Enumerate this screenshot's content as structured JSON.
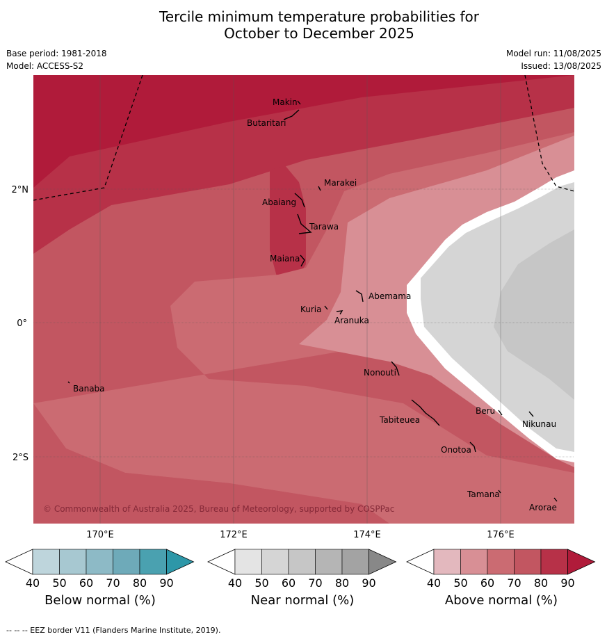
{
  "title": {
    "line1": "Tercile minimum temperature probabilities for",
    "line2": "October to December 2025"
  },
  "meta_left": {
    "base_period": "Base period: 1981-2018",
    "model": "Model: ACCESS-S2"
  },
  "meta_right": {
    "model_run": "Model run: 11/08/2025",
    "issued": "Issued: 13/08/2025"
  },
  "axes": {
    "lon_ticks": [
      "170°E",
      "172°E",
      "174°E",
      "176°E"
    ],
    "lat_ticks": [
      "2°N",
      "0°",
      "2°S"
    ]
  },
  "places": [
    {
      "name": "Makin"
    },
    {
      "name": "Butaritari"
    },
    {
      "name": "Marakei"
    },
    {
      "name": "Abaiang"
    },
    {
      "name": "Tarawa"
    },
    {
      "name": "Maiana"
    },
    {
      "name": "Abemama"
    },
    {
      "name": "Kuria"
    },
    {
      "name": "Aranuka"
    },
    {
      "name": "Banaba"
    },
    {
      "name": "Nonouti"
    },
    {
      "name": "Beru"
    },
    {
      "name": "Nikunau"
    },
    {
      "name": "Tabiteuea"
    },
    {
      "name": "Onotoa"
    },
    {
      "name": "Tamana"
    },
    {
      "name": "Arorae"
    }
  ],
  "copyright": "© Commonwealth of Australia 2025, Bureau of Meteorology, supported by COSPPac",
  "colorbars": [
    {
      "label": "Below normal (%)",
      "ticks": [
        "40",
        "50",
        "60",
        "70",
        "80",
        "90"
      ],
      "colors": [
        "#bed5dc",
        "#a7c8d1",
        "#8dbac6",
        "#6eaab9",
        "#4aa1b0",
        "#2d97a8"
      ]
    },
    {
      "label": "Near normal (%)",
      "ticks": [
        "40",
        "50",
        "60",
        "70",
        "80",
        "90"
      ],
      "colors": [
        "#e4e4e4",
        "#d5d5d5",
        "#c6c6c6",
        "#b5b5b5",
        "#a3a3a3",
        "#888888"
      ]
    },
    {
      "label": "Above normal (%)",
      "ticks": [
        "40",
        "50",
        "60",
        "70",
        "80",
        "90"
      ],
      "colors": [
        "#e3b8be",
        "#d88f95",
        "#cb6b72",
        "#c25661",
        "#b73148",
        "#b01b3a"
      ]
    }
  ],
  "footer": "--  --  -- EEZ border V11 (Flanders Marine Institute, 2019).",
  "colors": {
    "above_90": "#b01b3a",
    "above_80": "#b73148",
    "above_70": "#c25661",
    "above_60": "#cb6b72",
    "above_50": "#d88f95",
    "near_50": "#d5d5d5",
    "near_60": "#c6c6c6"
  }
}
